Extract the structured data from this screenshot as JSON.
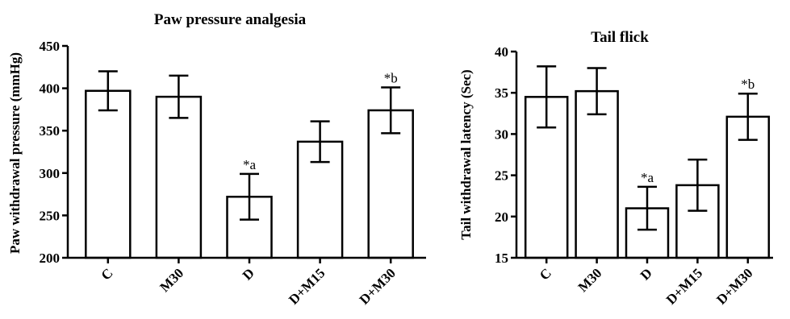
{
  "chart_data": [
    {
      "type": "bar",
      "title": "Paw pressure analgesia",
      "xlabel": "",
      "ylabel": "Paw withdrawal pressure (mmHg)",
      "ylim": [
        200,
        450
      ],
      "yticks": [
        200,
        250,
        300,
        350,
        400,
        450
      ],
      "categories": [
        "C",
        "M30",
        "D",
        "D+M15",
        "D+M30"
      ],
      "values": [
        397,
        390,
        272,
        337,
        374
      ],
      "errors": [
        23,
        25,
        27,
        24,
        27
      ],
      "annotations": [
        "",
        "",
        "*a",
        "",
        "*b"
      ],
      "bar_color": "#ffffff",
      "edge_color": "#000000"
    },
    {
      "type": "bar",
      "title": "Tail flick",
      "xlabel": "",
      "ylabel": "Tail withdrawal latency (Sec)",
      "ylim": [
        15,
        40
      ],
      "yticks": [
        15,
        20,
        25,
        30,
        35,
        40
      ],
      "categories": [
        "C",
        "M30",
        "D",
        "D+M15",
        "D+M30"
      ],
      "values": [
        34.5,
        35.2,
        21.0,
        23.8,
        32.1
      ],
      "errors": [
        3.7,
        2.8,
        2.6,
        3.1,
        2.8
      ],
      "annotations": [
        "",
        "",
        "*a",
        "",
        "*b"
      ],
      "bar_color": "#ffffff",
      "edge_color": "#000000"
    }
  ]
}
